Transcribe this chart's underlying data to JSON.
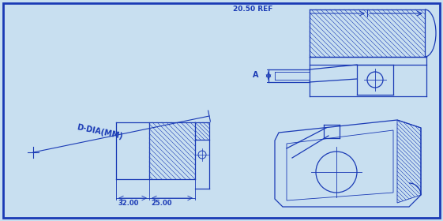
{
  "bg_color": "#c8dff0",
  "border_color": "#1a3ab5",
  "line_color": "#1a3ab5",
  "text_color": "#1a3ab5",
  "fig_width": 5.61,
  "fig_height": 2.8,
  "ann_ref": "20.50 REF",
  "ann_A": "A",
  "ann_D": "D-DIA(MM)",
  "ann_32": "32.00",
  "ann_25": "25.00"
}
